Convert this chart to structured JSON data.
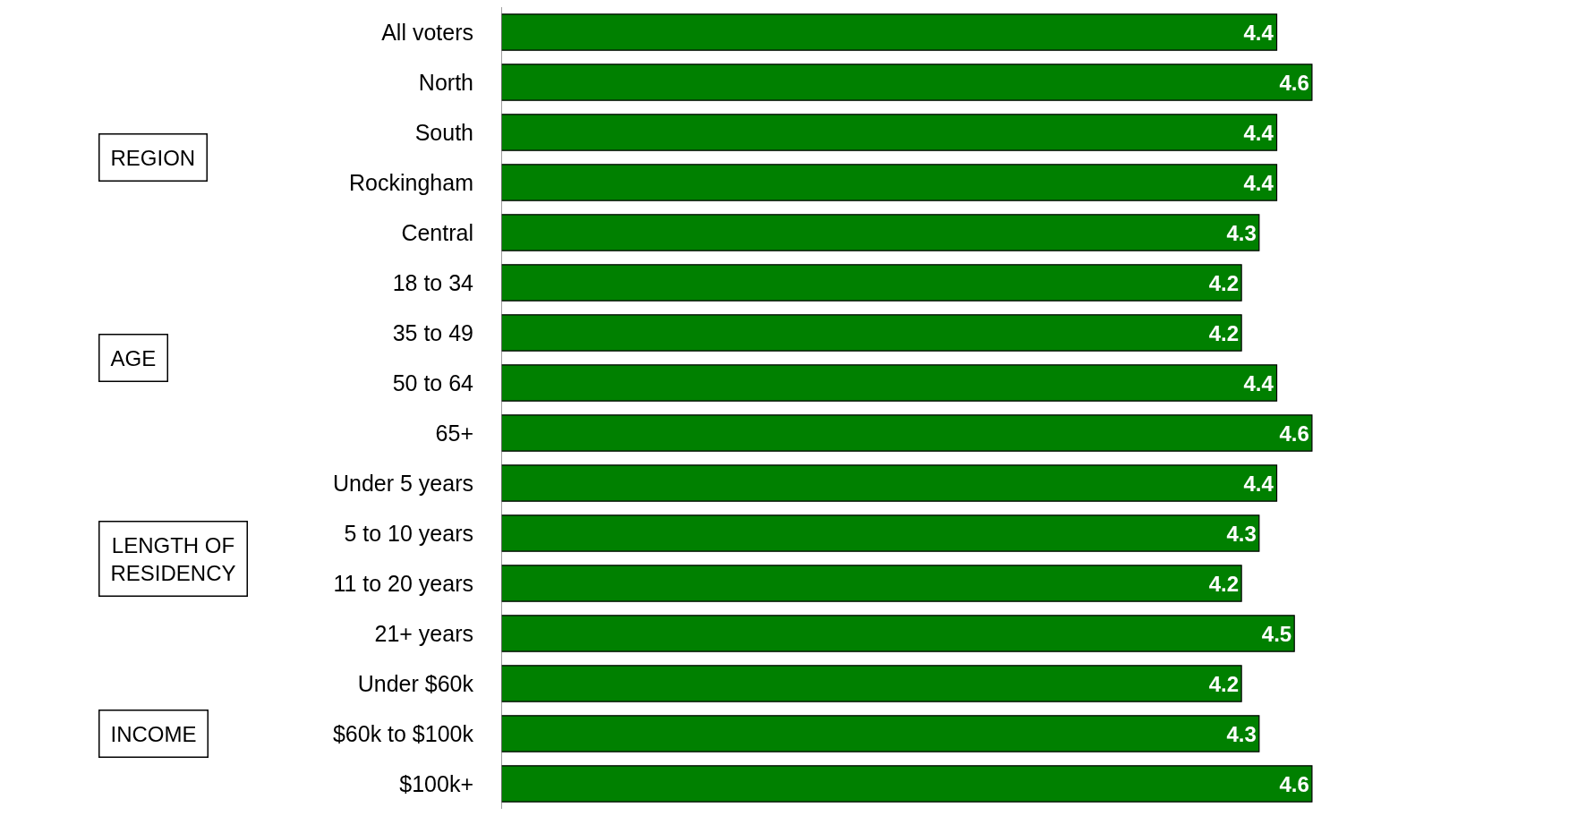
{
  "chart_data": {
    "type": "bar",
    "orientation": "horizontal",
    "categories": [
      "All voters",
      "North",
      "South",
      "Rockingham",
      "Central",
      "18 to 34",
      "35 to 49",
      "50 to 64",
      "65+",
      "Under 5 years",
      "5 to 10 years",
      "11 to 20 years",
      "21+ years",
      "Under $60k",
      "$60k to $100k",
      "$100k+"
    ],
    "values": [
      4.4,
      4.6,
      4.4,
      4.4,
      4.3,
      4.2,
      4.2,
      4.4,
      4.6,
      4.4,
      4.3,
      4.2,
      4.5,
      4.2,
      4.3,
      4.6
    ],
    "color": "#008000",
    "xlim": [
      0,
      6.2
    ],
    "tick_labels": "y",
    "data_labels": true,
    "annotations": [
      "REGION",
      "AGE",
      "LENGTH OF\nRESIDENCY",
      "INCOME"
    ]
  }
}
